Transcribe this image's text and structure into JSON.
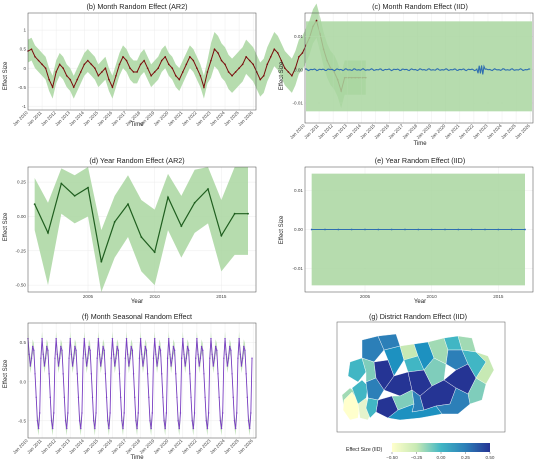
{
  "chart_data": [
    {
      "id": "b",
      "type": "line",
      "title": "(b) Month Random Effect (AR2)",
      "xlabel": "Time",
      "ylabel": "Effect Size",
      "x_ticks": [
        "Jan 2010",
        "Jan 2011",
        "Jan 2012",
        "Jan 2013",
        "Jan 2014",
        "Jan 2015",
        "Jan 2016",
        "Jan 2017",
        "Jan 2018",
        "Jan 2019",
        "Jan 2020",
        "Jan 2021",
        "Jan 2022",
        "Jan 2023",
        "Jan 2024",
        "Jan 2025",
        "Jan 2026"
      ],
      "y_ticks": [
        -1,
        -0.5,
        0,
        0.5,
        1
      ],
      "ylim": [
        -1.1,
        1.45
      ],
      "x_start": 2010,
      "x_end": 2026.2,
      "band_color": "#a9d6a0",
      "line_color": "#7a0c0c",
      "series": [
        {
          "x_start": 2010.0,
          "x_step": 0.25,
          "values": [
            0.45,
            0.5,
            0.3,
            0.2,
            0.1,
            0.0,
            -0.3,
            -0.5,
            -0.1,
            0.1,
            0.0,
            -0.2,
            -0.3,
            -0.5,
            -0.3,
            -0.1,
            0.1,
            0.2,
            0.1,
            0.0,
            -0.2,
            -0.1,
            0.0,
            -0.3,
            -0.5,
            -0.2,
            0.1,
            0.3,
            0.2,
            0.0,
            -0.1,
            -0.1,
            0.1,
            0.2,
            0.0,
            -0.2,
            -0.1,
            0.0,
            0.2,
            0.3,
            0.1,
            0.0,
            -0.2,
            -0.3,
            -0.1,
            0.1,
            0.3,
            0.2,
            0.0,
            -0.2,
            -0.5,
            -0.1,
            0.2,
            0.5,
            0.4,
            0.2,
            0.1,
            -0.1,
            -0.2,
            -0.1,
            0.0,
            0.1,
            0.3,
            0.2,
            0.1,
            -0.1,
            -0.3,
            -0.2,
            0.1,
            0.3,
            0.5,
            0.4,
            0.2,
            0.0,
            -0.1,
            -0.2,
            0.0,
            0.3,
            0.4,
            0.6,
            0.8,
            1.1,
            1.25,
            0.9,
            0.5,
            0.2,
            0.0,
            -0.1,
            -0.3,
            -0.6,
            -0.25,
            -0.25,
            -0.25,
            -0.25,
            -0.25,
            -0.25,
            -0.25
          ]
        }
      ],
      "band_halfwidth": {
        "observed": 0.3,
        "forecast": 0.45
      },
      "forecast_start": 2022.8
    },
    {
      "id": "c",
      "type": "line",
      "title": "(c) Month Random Effect (IID)",
      "xlabel": "Time",
      "ylabel": "Effect Size",
      "x_ticks": [
        "Jan 2010",
        "Jan 2011",
        "Jan 2012",
        "Jan 2013",
        "Jan 2014",
        "Jan 2015",
        "Jan 2016",
        "Jan 2017",
        "Jan 2018",
        "Jan 2019",
        "Jan 2020",
        "Jan 2021",
        "Jan 2022",
        "Jan 2023",
        "Jan 2024",
        "Jan 2025",
        "Jan 2026"
      ],
      "y_ticks": [
        -0.01,
        0,
        0.01
      ],
      "y_tick_labels": [
        "-0.01",
        "0.00",
        "0.01"
      ],
      "ylim": [
        -0.016,
        0.017
      ],
      "x_start": 2010,
      "x_end": 2026.2,
      "band": [
        -0.0125,
        0.0145
      ],
      "band_color": "#a9d6a0",
      "line_color": "#2f6fb0",
      "series": [
        {
          "value": 0.0
        }
      ]
    },
    {
      "id": "d",
      "type": "line",
      "title": "(d) Year Random Effect (AR2)",
      "xlabel": "Year",
      "ylabel": "Effect Size",
      "x_ticks": [
        2005,
        2010,
        2015
      ],
      "y_ticks": [
        -0.5,
        -0.25,
        0,
        0.25
      ],
      "y_tick_labels": [
        "-0.50",
        "-0.25",
        "0.00",
        "0.25"
      ],
      "ylim": [
        -0.55,
        0.36
      ],
      "xlim": [
        2000.5,
        2017.6
      ],
      "band_color": "#a9d6a0",
      "line_color": "#1f5e1f",
      "series": [
        {
          "x": [
            2001,
            2002,
            2003,
            2004,
            2005,
            2006,
            2007,
            2008,
            2009,
            2010,
            2011,
            2012,
            2013,
            2014,
            2015,
            2016,
            2017
          ],
          "values": [
            0.09,
            -0.12,
            0.24,
            0.15,
            0.21,
            -0.33,
            -0.04,
            0.09,
            -0.15,
            -0.26,
            0.14,
            -0.07,
            0.1,
            0.2,
            -0.14,
            0.02,
            0.02
          ],
          "lower": [
            -0.1,
            -0.5,
            0.02,
            -0.05,
            0.0,
            -0.55,
            -0.3,
            -0.15,
            -0.4,
            -0.5,
            -0.1,
            -0.3,
            -0.12,
            -0.05,
            -0.4,
            -0.28,
            -0.28
          ],
          "upper": [
            0.28,
            0.1,
            0.35,
            0.3,
            0.36,
            -0.1,
            0.15,
            0.3,
            0.12,
            0.05,
            0.31,
            0.15,
            0.34,
            0.4,
            0.12,
            0.43,
            0.43
          ]
        }
      ]
    },
    {
      "id": "e",
      "type": "line",
      "title": "(e) Year Random Effect (IID)",
      "xlabel": "Year",
      "ylabel": "Effect Size",
      "x_ticks": [
        2005,
        2010,
        2015
      ],
      "y_ticks": [
        -0.01,
        0,
        0.01
      ],
      "y_tick_labels": [
        "-0.01",
        "0.00",
        "0.01"
      ],
      "ylim": [
        -0.016,
        0.016
      ],
      "xlim": [
        2000.5,
        2017.6
      ],
      "band": [
        -0.0143,
        0.0143
      ],
      "band_color": "#a9d6a0",
      "line_color": "#2f6fb0",
      "series": [
        {
          "x": [
            2001,
            2002,
            2003,
            2004,
            2005,
            2006,
            2007,
            2008,
            2009,
            2010,
            2011,
            2012,
            2013,
            2014,
            2015,
            2016,
            2017
          ],
          "values": [
            0,
            0,
            0,
            0,
            0,
            0,
            0,
            0,
            0,
            0,
            0,
            0,
            0,
            0,
            0,
            0,
            0
          ]
        }
      ]
    },
    {
      "id": "f",
      "type": "line",
      "title": "(f) Month Seasonal Random Effect",
      "xlabel": "Time",
      "ylabel": "Effect Size",
      "x_ticks": [
        "Jan 2010",
        "Jan 2011",
        "Jan 2012",
        "Jan 2013",
        "Jan 2014",
        "Jan 2015",
        "Jan 2016",
        "Jan 2017",
        "Jan 2018",
        "Jan 2019",
        "Jan 2020",
        "Jan 2021",
        "Jan 2022",
        "Jan 2023",
        "Jan 2024",
        "Jan 2025",
        "Jan 2026"
      ],
      "y_ticks": [
        -0.5,
        0,
        0.5
      ],
      "y_tick_labels": [
        "-0.5",
        "0.0",
        "0.5"
      ],
      "ylim": [
        -0.72,
        0.75
      ],
      "x_start": 2010,
      "x_end": 2026.2,
      "band_color": "#a9d6a0",
      "line_color": "#7b3fc4",
      "seasonal_pattern": [
        0.55,
        0.35,
        0.2,
        0.3,
        0.45,
        0.4,
        0.1,
        -0.2,
        -0.5,
        -0.6,
        -0.4,
        0.3
      ],
      "years": 16
    },
    {
      "id": "g",
      "type": "heatmap",
      "title": "(g) District Random Effect (IID)",
      "legend_title": "Effect Size (IID)",
      "legend_ticks": [
        -0.5,
        -0.25,
        0,
        0.25,
        0.5
      ],
      "legend_tick_labels": [
        "−0.50",
        "−0.25",
        "0.00",
        "0.25",
        "0.50"
      ],
      "colors": [
        "#ffffcc",
        "#a1dab4",
        "#41b6c4",
        "#2c7fb8",
        "#253494"
      ]
    }
  ]
}
